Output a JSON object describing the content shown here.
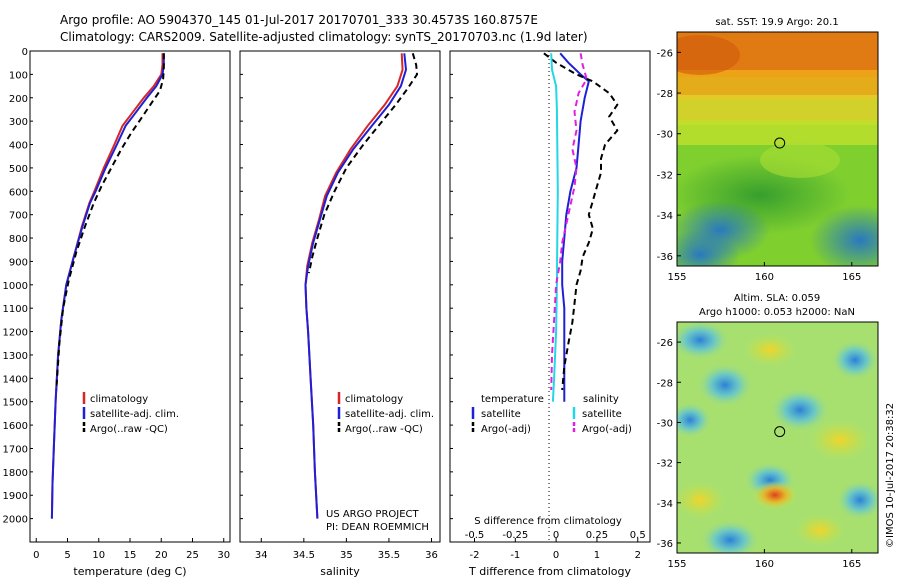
{
  "header": {
    "line1": "Argo profile: AO 5904370_145 01-Jul-2017 20170701_333 30.4573S 160.8757E",
    "line2": "Climatology: CARS2009. Satellite-adjusted climatology: synTS_20170703.nc (1.9d later)"
  },
  "credit": {
    "line1": "US ARGO PROJECT",
    "line2": "PI: DEAN ROEMMICH"
  },
  "watermark": "©IMOS 10-Jul-2017 20:38:32",
  "colors": {
    "climatology": "#d62728",
    "satellite_adj": "#1f1fd6",
    "argo": "#000000",
    "salinity_sat": "#22d7e6",
    "salinity_argo": "#e020e0"
  },
  "chart_data": [
    {
      "id": "temperature",
      "type": "line",
      "xlabel": "temperature (deg C)",
      "ylabel": "",
      "xlim": [
        -1,
        31
      ],
      "ylim": [
        2100,
        0
      ],
      "xticks": [
        0,
        5,
        10,
        15,
        20,
        25,
        30
      ],
      "yticks": [
        0,
        100,
        200,
        300,
        400,
        500,
        600,
        700,
        800,
        900,
        1000,
        1100,
        1200,
        1300,
        1400,
        1500,
        1600,
        1700,
        1800,
        1900,
        2000
      ],
      "legend": [
        "climatology",
        "satellite-adj. clim.",
        "Argo(..raw -QC)"
      ],
      "legend_position": "lower-center",
      "series": [
        {
          "name": "climatology",
          "color": "#d62728",
          "dash": "",
          "points": [
            [
              20.2,
              10
            ],
            [
              20.2,
              60
            ],
            [
              20.0,
              100
            ],
            [
              18.8,
              150
            ],
            [
              17.2,
              200
            ],
            [
              15.5,
              260
            ],
            [
              13.8,
              320
            ],
            [
              12.5,
              400
            ],
            [
              10.8,
              500
            ],
            [
              9.3,
              600
            ],
            [
              8.5,
              650
            ],
            [
              7.3,
              750
            ],
            [
              6.0,
              880
            ],
            [
              4.8,
              1000
            ],
            [
              4.0,
              1150
            ],
            [
              3.5,
              1300
            ],
            [
              3.1,
              1500
            ],
            [
              2.8,
              1700
            ],
            [
              2.6,
              1850
            ],
            [
              2.5,
              2000
            ]
          ]
        },
        {
          "name": "satellite-adj. clim.",
          "color": "#1f1fd6",
          "dash": "",
          "points": [
            [
              20.4,
              10
            ],
            [
              20.4,
              60
            ],
            [
              20.2,
              100
            ],
            [
              19.2,
              150
            ],
            [
              17.7,
              200
            ],
            [
              16.0,
              260
            ],
            [
              14.3,
              320
            ],
            [
              12.9,
              400
            ],
            [
              11.1,
              500
            ],
            [
              9.5,
              600
            ],
            [
              8.6,
              650
            ],
            [
              7.4,
              750
            ],
            [
              6.0,
              880
            ],
            [
              4.8,
              1000
            ],
            [
              4.0,
              1150
            ],
            [
              3.5,
              1300
            ],
            [
              3.1,
              1500
            ],
            [
              2.8,
              1700
            ],
            [
              2.6,
              1850
            ],
            [
              2.5,
              2000
            ]
          ]
        },
        {
          "name": "Argo(..raw -QC)",
          "color": "#000000",
          "dash": "6,4",
          "points": [
            [
              20.4,
              10
            ],
            [
              20.4,
              80
            ],
            [
              20.3,
              120
            ],
            [
              19.8,
              170
            ],
            [
              18.5,
              220
            ],
            [
              17.0,
              280
            ],
            [
              15.2,
              350
            ],
            [
              13.6,
              420
            ],
            [
              12.0,
              500
            ],
            [
              10.4,
              580
            ],
            [
              9.2,
              650
            ],
            [
              7.8,
              750
            ],
            [
              6.4,
              860
            ],
            [
              5.2,
              980
            ],
            [
              4.3,
              1100
            ],
            [
              3.7,
              1250
            ],
            [
              3.2,
              1450
            ]
          ]
        }
      ]
    },
    {
      "id": "salinity",
      "type": "line",
      "xlabel": "salinity",
      "ylabel": "",
      "xlim": [
        33.75,
        36.1
      ],
      "ylim": [
        2100,
        0
      ],
      "xticks": [
        34,
        34.5,
        35,
        35.5,
        36
      ],
      "legend": [
        "climatology",
        "satellite-adj. clim.",
        "Argo(..raw -QC)"
      ],
      "legend_position": "lower-center",
      "series": [
        {
          "name": "climatology",
          "color": "#d62728",
          "dash": "",
          "points": [
            [
              35.65,
              10
            ],
            [
              35.66,
              80
            ],
            [
              35.6,
              150
            ],
            [
              35.45,
              230
            ],
            [
              35.25,
              320
            ],
            [
              35.05,
              420
            ],
            [
              34.88,
              520
            ],
            [
              34.75,
              620
            ],
            [
              34.68,
              720
            ],
            [
              34.6,
              820
            ],
            [
              34.54,
              920
            ],
            [
              34.52,
              1000
            ],
            [
              34.53,
              1100
            ],
            [
              34.55,
              1200
            ],
            [
              34.58,
              1400
            ],
            [
              34.61,
              1600
            ],
            [
              34.63,
              1800
            ],
            [
              34.66,
              2000
            ]
          ]
        },
        {
          "name": "satellite-adj. clim.",
          "color": "#1f1fd6",
          "dash": "",
          "points": [
            [
              35.68,
              10
            ],
            [
              35.7,
              80
            ],
            [
              35.64,
              150
            ],
            [
              35.5,
              230
            ],
            [
              35.3,
              320
            ],
            [
              35.08,
              420
            ],
            [
              34.9,
              520
            ],
            [
              34.77,
              620
            ],
            [
              34.69,
              720
            ],
            [
              34.61,
              820
            ],
            [
              34.55,
              920
            ],
            [
              34.52,
              1000
            ],
            [
              34.53,
              1100
            ],
            [
              34.55,
              1200
            ],
            [
              34.58,
              1400
            ],
            [
              34.61,
              1600
            ],
            [
              34.63,
              1800
            ],
            [
              34.66,
              2000
            ]
          ]
        },
        {
          "name": "Argo(..raw -QC)",
          "color": "#000000",
          "dash": "6,4",
          "points": [
            [
              35.78,
              10
            ],
            [
              35.82,
              60
            ],
            [
              35.83,
              100
            ],
            [
              35.72,
              160
            ],
            [
              35.58,
              230
            ],
            [
              35.4,
              310
            ],
            [
              35.2,
              400
            ],
            [
              35.0,
              500
            ],
            [
              34.86,
              600
            ],
            [
              34.74,
              700
            ],
            [
              34.66,
              800
            ],
            [
              34.6,
              880
            ],
            [
              34.56,
              950
            ]
          ]
        }
      ]
    },
    {
      "id": "difference",
      "type": "line",
      "xlabel": "T difference from climatology",
      "xlabel_top": "S difference from climatology",
      "xlim": [
        -2.6,
        2.3
      ],
      "ylim": [
        2100,
        0
      ],
      "xticks": [
        -2,
        -1,
        0,
        1,
        2
      ],
      "sticks": [
        "-0.5",
        "-0.25",
        "0",
        "0.25",
        "0.5"
      ],
      "legend_temperature": {
        "title": "temperature",
        "items": [
          "satellite",
          "Argo(-adj)"
        ]
      },
      "legend_salinity": {
        "title": "salinity",
        "items": [
          "satellite",
          "Argo(-adj)"
        ]
      },
      "legend_position": "lower-center",
      "series": [
        {
          "name": "temperature satellite",
          "color": "#1f1fd6",
          "dash": "",
          "points": [
            [
              0.1,
              10
            ],
            [
              0.3,
              50
            ],
            [
              0.6,
              100
            ],
            [
              0.8,
              130
            ],
            [
              0.7,
              200
            ],
            [
              0.6,
              300
            ],
            [
              0.55,
              400
            ],
            [
              0.5,
              500
            ],
            [
              0.35,
              600
            ],
            [
              0.25,
              700
            ],
            [
              0.2,
              800
            ],
            [
              0.15,
              900
            ],
            [
              0.15,
              1000
            ],
            [
              0.2,
              1100
            ],
            [
              0.2,
              1250
            ],
            [
              0.2,
              1500
            ]
          ]
        },
        {
          "name": "temperature Argo(-adj)",
          "color": "#000000",
          "dash": "6,4",
          "points": [
            [
              -0.3,
              10
            ],
            [
              0.0,
              50
            ],
            [
              0.5,
              100
            ],
            [
              0.9,
              130
            ],
            [
              1.3,
              180
            ],
            [
              1.5,
              230
            ],
            [
              1.3,
              280
            ],
            [
              1.5,
              340
            ],
            [
              1.2,
              400
            ],
            [
              1.1,
              460
            ],
            [
              1.1,
              520
            ],
            [
              1.0,
              580
            ],
            [
              0.9,
              640
            ],
            [
              0.8,
              700
            ],
            [
              0.9,
              760
            ],
            [
              0.8,
              820
            ],
            [
              0.65,
              880
            ],
            [
              0.6,
              940
            ],
            [
              0.5,
              1000
            ],
            [
              0.45,
              1080
            ],
            [
              0.4,
              1160
            ],
            [
              0.3,
              1250
            ],
            [
              0.2,
              1350
            ],
            [
              0.15,
              1450
            ]
          ]
        },
        {
          "name": "salinity satellite",
          "color": "#22d7e6",
          "dash": "",
          "points": [
            [
              -0.12,
              10
            ],
            [
              -0.1,
              80
            ],
            [
              0.0,
              150
            ],
            [
              0.02,
              250
            ],
            [
              0.03,
              400
            ],
            [
              0.04,
              600
            ],
            [
              0.03,
              800
            ],
            [
              0.02,
              1000
            ],
            [
              0.0,
              1200
            ],
            [
              -0.05,
              1400
            ],
            [
              -0.08,
              1500
            ]
          ]
        },
        {
          "name": "salinity Argo(-adj)",
          "color": "#e020e0",
          "dash": "6,4",
          "points": [
            [
              0.6,
              10
            ],
            [
              0.65,
              60
            ],
            [
              0.75,
              120
            ],
            [
              0.55,
              180
            ],
            [
              0.45,
              260
            ],
            [
              0.5,
              340
            ],
            [
              0.4,
              420
            ],
            [
              0.5,
              500
            ],
            [
              0.45,
              580
            ],
            [
              0.35,
              660
            ],
            [
              0.25,
              740
            ],
            [
              0.15,
              820
            ],
            [
              0.1,
              900
            ],
            [
              0.0,
              1000
            ],
            [
              -0.05,
              1150
            ],
            [
              -0.1,
              1300
            ],
            [
              -0.12,
              1450
            ]
          ]
        }
      ]
    },
    {
      "id": "sst_map",
      "type": "heatmap",
      "title": "sat. SST: 19.9 Argo: 20.1",
      "xlim": [
        155,
        166.5
      ],
      "ylim": [
        -36.5,
        -25
      ],
      "xticks": [
        155,
        160,
        165
      ],
      "yticks": [
        -26,
        -28,
        -30,
        -32,
        -34,
        -36
      ],
      "marker": {
        "lon": 160.8757,
        "lat": -30.4573
      }
    },
    {
      "id": "sla_map",
      "type": "heatmap",
      "title": "Altim. SLA: 0.059",
      "subtitle": "Argo h1000: 0.053 h2000: NaN",
      "xlim": [
        155,
        166.5
      ],
      "ylim": [
        -36.5,
        -25
      ],
      "xticks": [
        155,
        160,
        165
      ],
      "yticks": [
        -26,
        -28,
        -30,
        -32,
        -34,
        -36
      ],
      "marker": {
        "lon": 160.8757,
        "lat": -30.4573
      }
    }
  ]
}
